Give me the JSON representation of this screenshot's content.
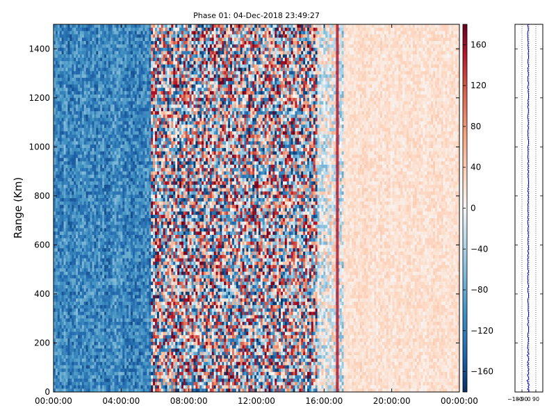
{
  "chart_data": {
    "type": "heatmap",
    "title": "Phase 01: 04-Dec-2018 23:49:27",
    "ylabel": "Range (Km)",
    "xlabel": "",
    "x_ticks": [
      "00:00:00",
      "04:00:00",
      "08:00:00",
      "12:00:00",
      "16:00:00",
      "20:00:00",
      "00:00:00"
    ],
    "x_range_hours": [
      0,
      24
    ],
    "y_ticks": [
      "0",
      "200",
      "400",
      "600",
      "800",
      "1000",
      "1200",
      "1400"
    ],
    "ylim": [
      0,
      1500
    ],
    "colorbar": {
      "colormap": "RdBu_r",
      "range": [
        -180,
        180
      ],
      "ticks": [
        "160",
        "120",
        "80",
        "40",
        "0",
        "−40",
        "−80",
        "−120",
        "−160"
      ]
    },
    "phase_trend": [
      {
        "from_hour": 0,
        "to_hour": 5.8,
        "typical_phase": -110,
        "scatter": 40
      },
      {
        "from_hour": 5.8,
        "to_hour": 15.6,
        "typical_phase": 0,
        "scatter": 180
      },
      {
        "from_hour": 15.6,
        "to_hour": 17.2,
        "typical_phase": -10,
        "scatter": 60
      },
      {
        "from_hour": 17.2,
        "to_hour": 24,
        "typical_phase": 20,
        "scatter": 15
      }
    ],
    "profile_panel": {
      "x_ticks": [
        "−180",
        "−90",
        "0",
        "90"
      ],
      "xlim": [
        -180,
        180
      ],
      "ylim": [
        0,
        1500
      ],
      "mean_phase": -10
    },
    "colors": {
      "colormap_low": "#053061",
      "colormap_mid": "#f7f7f7",
      "colormap_high": "#67001f",
      "profile_line": "#0000cc"
    }
  }
}
